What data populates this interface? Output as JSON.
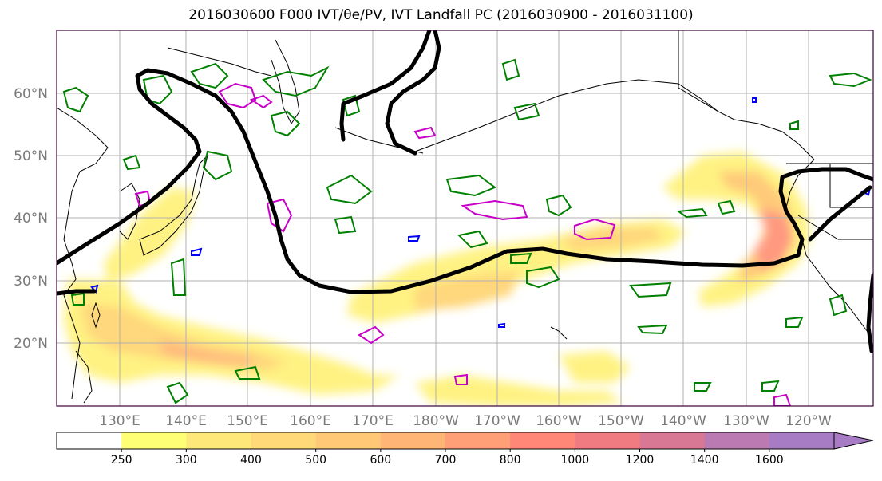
{
  "title": "2016030600 F000 IVT/θe/PV, IVT Landfall PC (2016030900 - 2016031100)",
  "map": {
    "lat_labels": [
      "60°N",
      "50°N",
      "40°N",
      "30°N",
      "20°N"
    ],
    "lon_labels": [
      "130°E",
      "140°E",
      "150°E",
      "160°E",
      "170°E",
      "180°W",
      "170°W",
      "160°W",
      "150°W",
      "140°W",
      "130°W",
      "120°W"
    ],
    "colors": {
      "pv_contour": "#000000",
      "theta_contour": "#008000",
      "ivt_positive_contour": "#cc00cc",
      "ivt_negative_contour": "#0000ff",
      "coastline": "#000000",
      "grid": "#b0b0b0"
    }
  },
  "colorbar": {
    "ticks": [
      "250",
      "300",
      "400",
      "500",
      "600",
      "700",
      "800",
      "1000",
      "1200",
      "1400",
      "1600"
    ],
    "colors": [
      "#ffffff",
      "#ffff75",
      "#ffe87a",
      "#ffd978",
      "#ffc877",
      "#ffb576",
      "#ff9f77",
      "#ff8778",
      "#f07b80",
      "#d87895",
      "#bc7ab2",
      "#a77cc4"
    ],
    "extend": "max"
  }
}
